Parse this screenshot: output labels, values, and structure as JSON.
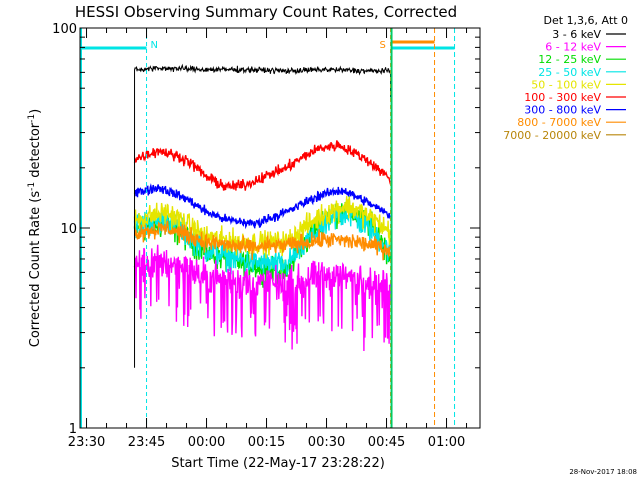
{
  "chart_data": {
    "type": "line",
    "title": "HESSI Observing Summary Count Rates, Corrected",
    "xlabel": "Start Time (22-May-17 23:28:22)",
    "ylabel_prefix": "Corrected Count Rate (s",
    "ylabel_sup1": "-1",
    "ylabel_mid": " detector",
    "ylabel_sup2": "-1",
    "ylabel_suffix": ")",
    "y_scale": "log",
    "ylim": [
      1,
      100
    ],
    "y_ticks": [
      {
        "value": 1,
        "label": "1"
      },
      {
        "value": 10,
        "label": "10"
      },
      {
        "value": 100,
        "label": "100"
      }
    ],
    "xlim": [
      "23:28:22",
      "01:08:22"
    ],
    "x_ticks": [
      {
        "value": "23:30",
        "label": "23:30"
      },
      {
        "value": "23:45",
        "label": "23:45"
      },
      {
        "value": "00:00",
        "label": "00:00"
      },
      {
        "value": "00:15",
        "label": "00:15"
      },
      {
        "value": "00:30",
        "label": "00:30"
      },
      {
        "value": "00:45",
        "label": "00:45"
      },
      {
        "value": "01:00",
        "label": "01:00"
      }
    ],
    "data_start": "23:42",
    "data_end": "00:46",
    "legend_header": "Det 1,3,6, Att 0",
    "legend_placement": "right",
    "series": [
      {
        "name": "3 - 6 keV",
        "color": "#000000",
        "values": [
          {
            "t": "23:42",
            "y": 62
          },
          {
            "t": "23:50",
            "y": 63
          },
          {
            "t": "00:00",
            "y": 62
          },
          {
            "t": "00:10",
            "y": 62
          },
          {
            "t": "00:20",
            "y": 61
          },
          {
            "t": "00:30",
            "y": 62
          },
          {
            "t": "00:40",
            "y": 61
          },
          {
            "t": "00:46",
            "y": 61
          }
        ]
      },
      {
        "name": "6 - 12 keV",
        "color": "#ff00ff",
        "values": [
          {
            "t": "23:42",
            "y": 6.6
          },
          {
            "t": "23:50",
            "y": 6.8
          },
          {
            "t": "23:55",
            "y": 6.3
          },
          {
            "t": "00:00",
            "y": 5.7
          },
          {
            "t": "00:10",
            "y": 5.4
          },
          {
            "t": "00:20",
            "y": 5.2
          },
          {
            "t": "00:30",
            "y": 5.8
          },
          {
            "t": "00:38",
            "y": 5.6
          },
          {
            "t": "00:46",
            "y": 4.9
          }
        ]
      },
      {
        "name": "12 - 25 keV",
        "color": "#00dd00",
        "values": [
          {
            "t": "23:42",
            "y": 9.8
          },
          {
            "t": "23:50",
            "y": 10.5
          },
          {
            "t": "00:00",
            "y": 7.5
          },
          {
            "t": "00:10",
            "y": 6.6
          },
          {
            "t": "00:20",
            "y": 6.0
          },
          {
            "t": "00:30",
            "y": 11.5
          },
          {
            "t": "00:35",
            "y": 12.5
          },
          {
            "t": "00:42",
            "y": 10.0
          },
          {
            "t": "00:46",
            "y": 7.0
          }
        ]
      },
      {
        "name": "25 - 50 keV",
        "color": "#00e5e5",
        "values": [
          {
            "t": "23:42",
            "y": 10.5
          },
          {
            "t": "23:50",
            "y": 11.0
          },
          {
            "t": "00:00",
            "y": 7.8
          },
          {
            "t": "00:10",
            "y": 6.8
          },
          {
            "t": "00:20",
            "y": 6.5
          },
          {
            "t": "00:30",
            "y": 10.5
          },
          {
            "t": "00:35",
            "y": 12.0
          },
          {
            "t": "00:42",
            "y": 9.5
          },
          {
            "t": "00:46",
            "y": 7.5
          }
        ]
      },
      {
        "name": "50 - 100 keV",
        "color": "#e5e500",
        "values": [
          {
            "t": "23:42",
            "y": 11.0
          },
          {
            "t": "23:50",
            "y": 12.0
          },
          {
            "t": "00:00",
            "y": 9.0
          },
          {
            "t": "00:10",
            "y": 8.5
          },
          {
            "t": "00:20",
            "y": 8.5
          },
          {
            "t": "00:30",
            "y": 12.0
          },
          {
            "t": "00:35",
            "y": 13.0
          },
          {
            "t": "00:42",
            "y": 11.0
          },
          {
            "t": "00:46",
            "y": 9.5
          }
        ]
      },
      {
        "name": "100 - 300 keV",
        "color": "#ff0000",
        "values": [
          {
            "t": "23:42",
            "y": 22
          },
          {
            "t": "23:48",
            "y": 24.5
          },
          {
            "t": "23:55",
            "y": 22
          },
          {
            "t": "00:00",
            "y": 18
          },
          {
            "t": "00:05",
            "y": 16
          },
          {
            "t": "00:10",
            "y": 16.5
          },
          {
            "t": "00:20",
            "y": 20
          },
          {
            "t": "00:28",
            "y": 25
          },
          {
            "t": "00:33",
            "y": 26
          },
          {
            "t": "00:40",
            "y": 22
          },
          {
            "t": "00:46",
            "y": 17.5
          }
        ]
      },
      {
        "name": "300 - 800 keV",
        "color": "#0000ff",
        "values": [
          {
            "t": "23:42",
            "y": 15
          },
          {
            "t": "23:48",
            "y": 16
          },
          {
            "t": "23:55",
            "y": 14
          },
          {
            "t": "00:00",
            "y": 12
          },
          {
            "t": "00:05",
            "y": 11
          },
          {
            "t": "00:12",
            "y": 10.5
          },
          {
            "t": "00:20",
            "y": 12
          },
          {
            "t": "00:28",
            "y": 14.5
          },
          {
            "t": "00:34",
            "y": 15.5
          },
          {
            "t": "00:40",
            "y": 13.5
          },
          {
            "t": "00:46",
            "y": 11.5
          }
        ]
      },
      {
        "name": "800 - 7000 keV",
        "color": "#ff8c00",
        "values": [
          {
            "t": "23:42",
            "y": 9.5
          },
          {
            "t": "23:50",
            "y": 10.0
          },
          {
            "t": "00:00",
            "y": 8.5
          },
          {
            "t": "00:10",
            "y": 8.0
          },
          {
            "t": "00:20",
            "y": 8.2
          },
          {
            "t": "00:30",
            "y": 8.8
          },
          {
            "t": "00:38",
            "y": 8.5
          },
          {
            "t": "00:46",
            "y": 7.8
          }
        ]
      },
      {
        "name": "7000 - 20000 keV",
        "color": "#b8860b",
        "values": []
      }
    ],
    "annotations": [
      {
        "text": "N",
        "color": "#00e5e5",
        "time": "23:45"
      },
      {
        "text": "S",
        "color": "#ff8c00",
        "time": "00:46"
      }
    ],
    "timestamp": "28-Nov-2017 18:08"
  }
}
